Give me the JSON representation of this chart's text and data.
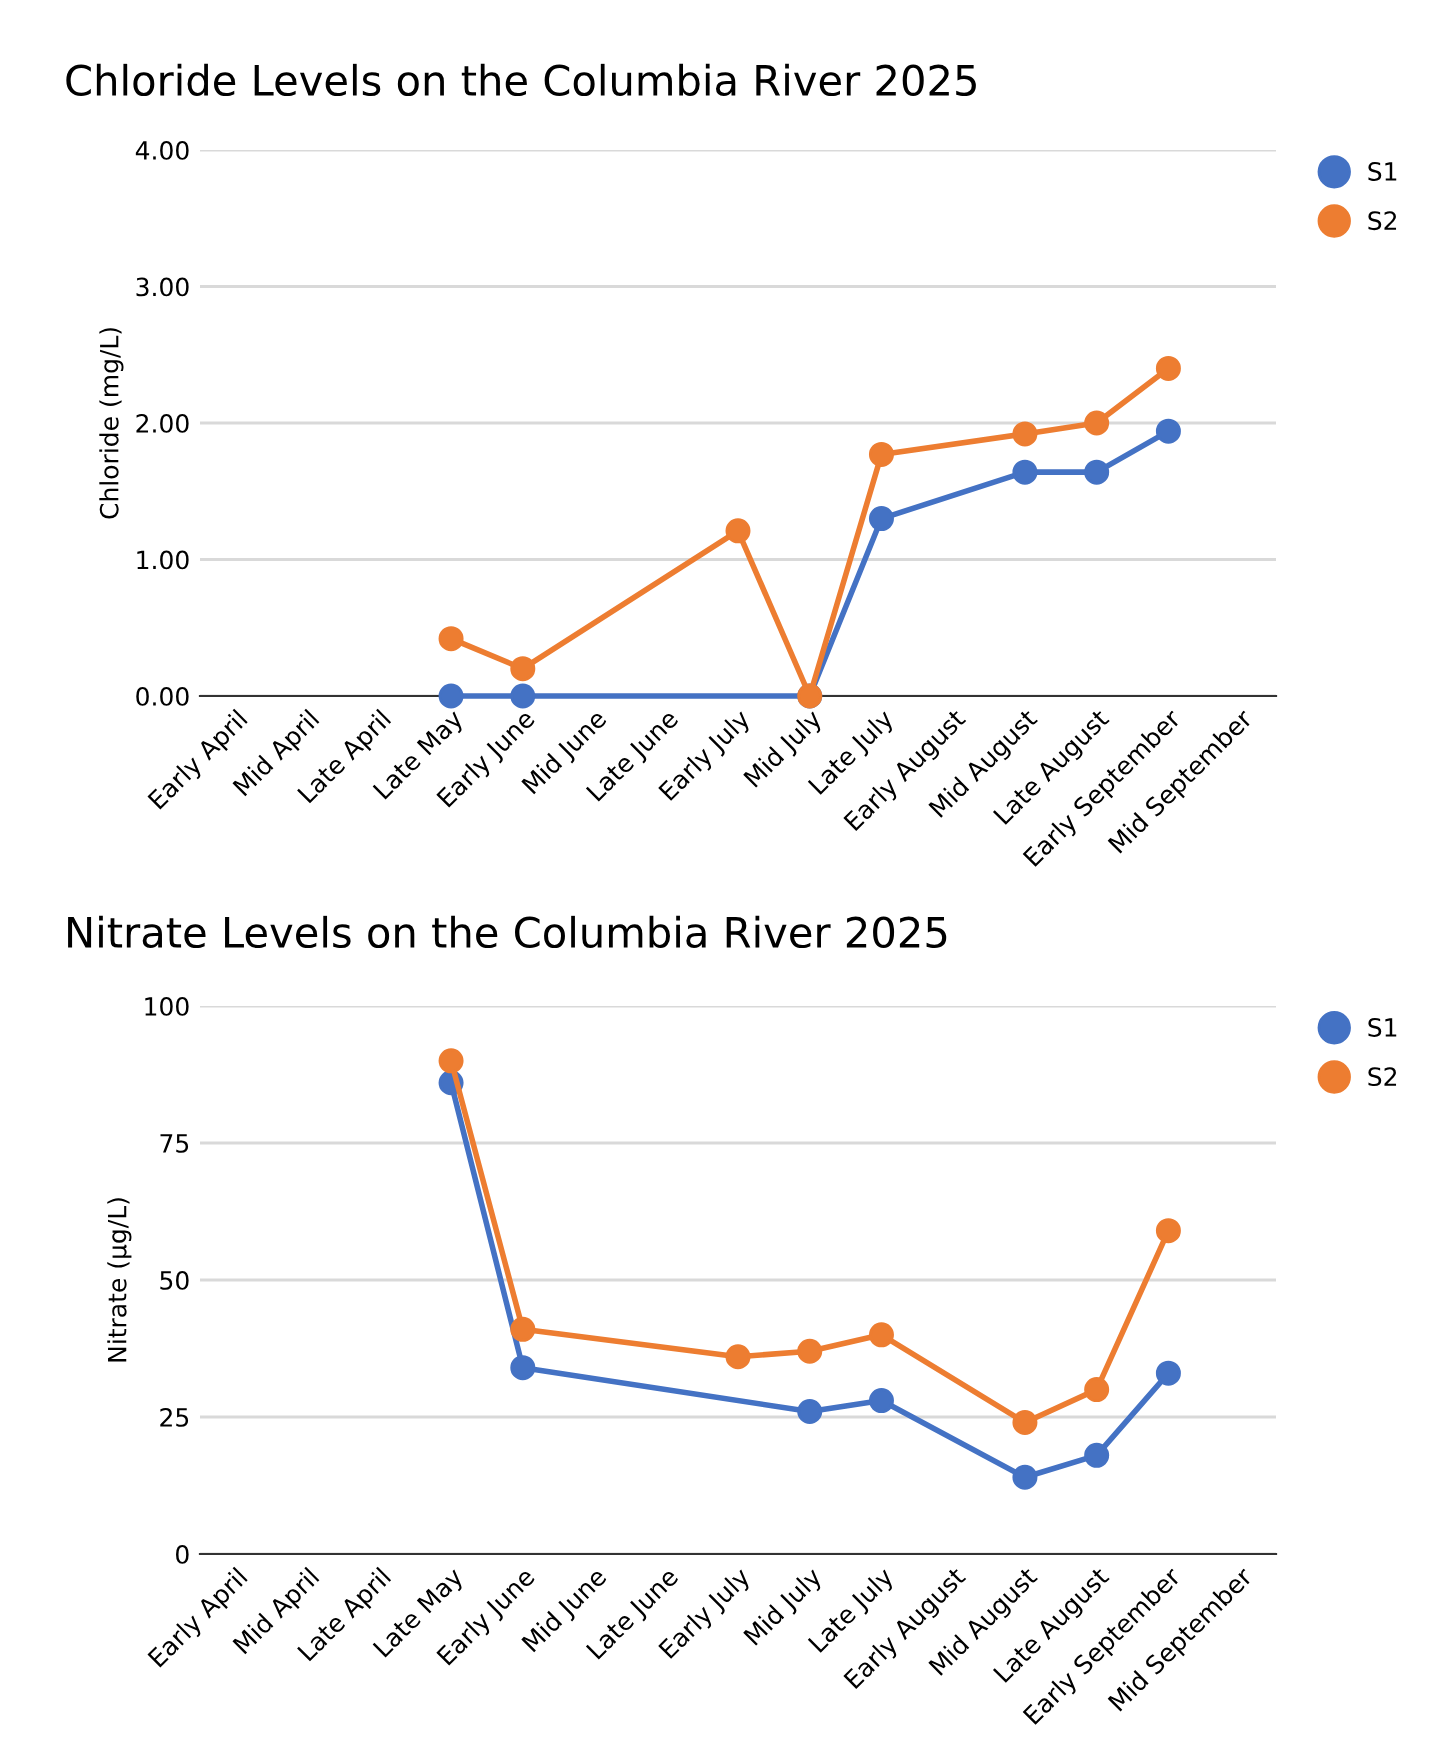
{
  "chart_data": [
    {
      "type": "line",
      "title": "Chloride Levels on the Columbia River 2025",
      "ylabel": "Chloride (mg/L)",
      "categories": [
        "Early April",
        "Mid April",
        "Late April",
        "Late May",
        "Early June",
        "Mid June",
        "Late June",
        "Early July",
        "Mid July",
        "Late July",
        "Early August",
        "Mid August",
        "Late August",
        "Early September",
        "Mid September"
      ],
      "series": [
        {
          "name": "S1",
          "color": "#4472c4",
          "values": [
            null,
            null,
            null,
            0,
            0,
            null,
            null,
            null,
            0,
            1.3,
            null,
            1.64,
            1.64,
            1.94,
            null
          ]
        },
        {
          "name": "S2",
          "color": "#ed7d31",
          "values": [
            null,
            null,
            null,
            0.42,
            0.2,
            null,
            null,
            1.21,
            0,
            1.77,
            null,
            1.92,
            2.0,
            2.4,
            null
          ]
        }
      ],
      "ylim": [
        0,
        4
      ],
      "yticks": [
        {
          "value": 0,
          "label": "0.00"
        },
        {
          "value": 1,
          "label": "1.00"
        },
        {
          "value": 2,
          "label": "2.00"
        },
        {
          "value": 3,
          "label": "3.00"
        },
        {
          "value": 4,
          "label": "4.00"
        }
      ],
      "grid": "y",
      "legend": "top right",
      "marker": "circle",
      "line_style": "solid"
    },
    {
      "type": "line",
      "title": "Nitrate Levels on the Columbia River 2025",
      "ylabel": "Nitrate (µg/L)",
      "categories": [
        "Early April",
        "Mid April",
        "Late April",
        "Late May",
        "Early June",
        "Mid June",
        "Late June",
        "Early July",
        "Mid July",
        "Late July",
        "Early August",
        "Mid August",
        "Late August",
        "Early September",
        "Mid September"
      ],
      "series": [
        {
          "name": "S1",
          "color": "#4472c4",
          "values": [
            null,
            null,
            null,
            86,
            34,
            null,
            null,
            null,
            26,
            28,
            null,
            14,
            18,
            33,
            null
          ]
        },
        {
          "name": "S2",
          "color": "#ed7d31",
          "values": [
            null,
            null,
            null,
            90,
            41,
            null,
            null,
            36,
            37,
            40,
            null,
            24,
            30,
            59,
            null
          ]
        }
      ],
      "ylim": [
        0,
        100
      ],
      "yticks": [
        0,
        25,
        50,
        75,
        100
      ],
      "grid": "y",
      "legend": "top right",
      "marker": "circle",
      "line_style": "solid"
    }
  ]
}
